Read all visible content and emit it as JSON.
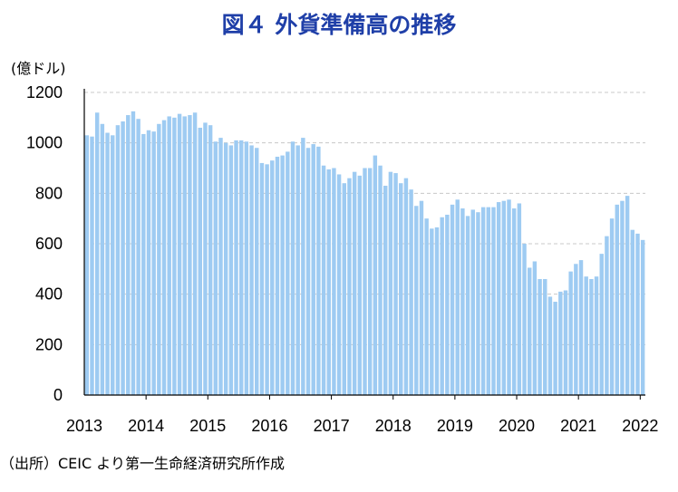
{
  "title": "図４ 外貨準備高の推移",
  "unit": "(億ドル)",
  "source": "（出所）CEIC より第一生命経済研究所作成",
  "colors": {
    "bar": "#9ecbf2",
    "title": "#1f3fa8",
    "grid": "#c8c8c8",
    "axis": "#000000"
  },
  "chart_data": {
    "type": "bar",
    "ylabel": "(億ドル)",
    "xlabel": "",
    "ylim": [
      0,
      1200
    ],
    "yticks": [
      0,
      200,
      400,
      600,
      800,
      1000,
      1200
    ],
    "grid": true,
    "x_tick_labels": [
      "2013",
      "2014",
      "2015",
      "2016",
      "2017",
      "2018",
      "2019",
      "2020",
      "2021",
      "2022"
    ],
    "x_start": "2013-01",
    "frequency": "monthly",
    "values": [
      1030,
      1025,
      1120,
      1075,
      1040,
      1030,
      1070,
      1085,
      1110,
      1125,
      1095,
      1035,
      1050,
      1045,
      1075,
      1090,
      1105,
      1100,
      1115,
      1105,
      1110,
      1120,
      1060,
      1080,
      1070,
      1005,
      1020,
      1000,
      990,
      1010,
      1010,
      1005,
      990,
      980,
      920,
      915,
      930,
      945,
      950,
      965,
      1005,
      990,
      1020,
      980,
      995,
      985,
      910,
      895,
      900,
      875,
      840,
      860,
      885,
      870,
      900,
      900,
      950,
      910,
      830,
      885,
      880,
      840,
      860,
      815,
      750,
      770,
      700,
      660,
      665,
      705,
      715,
      755,
      775,
      740,
      710,
      735,
      725,
      745,
      745,
      745,
      765,
      770,
      775,
      740,
      760,
      600,
      505,
      530,
      460,
      460,
      390,
      370,
      410,
      415,
      490,
      520,
      535,
      470,
      460,
      470,
      560,
      630,
      700,
      755,
      770,
      790,
      655,
      640,
      615
    ]
  }
}
